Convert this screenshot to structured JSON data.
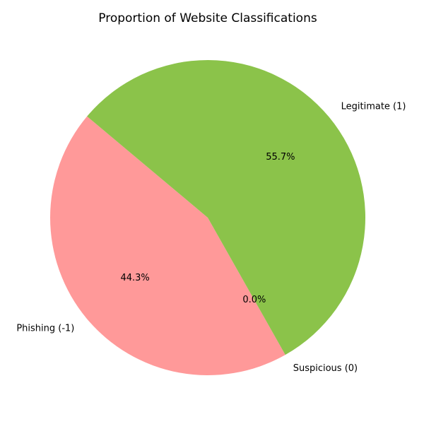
{
  "chart_data": {
    "type": "pie",
    "title": "Proportion of Website Classifications",
    "start_angle_deg": 140,
    "counterclockwise": true,
    "slices": [
      {
        "label": "Phishing (-1)",
        "value": 44.3,
        "pct_label": "44.3%",
        "color": "#ff9999"
      },
      {
        "label": "Suspicious (0)",
        "value": 0.0,
        "pct_label": "0.0%",
        "color": "#66b3ff"
      },
      {
        "label": "Legitimate (1)",
        "value": 55.7,
        "pct_label": "55.7%",
        "color": "#8bc34a"
      }
    ]
  }
}
